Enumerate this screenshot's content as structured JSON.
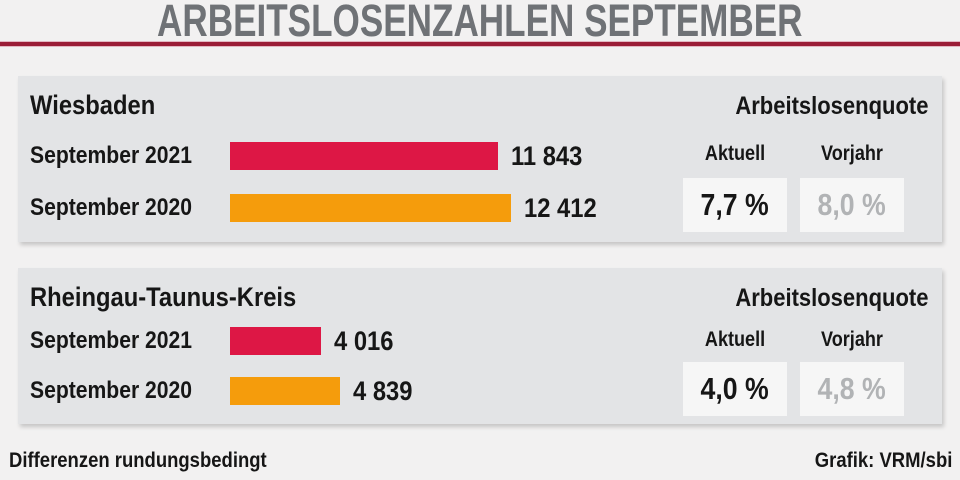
{
  "title": "ARBEITSLOSENZAHLEN SEPTEMBER",
  "labels": {
    "quote_header": "Arbeitslosenquote",
    "aktuell": "Aktuell",
    "vorjahr": "Vorjahr"
  },
  "panels": [
    {
      "region": "Wiesbaden",
      "rows": [
        {
          "label": "September 2021",
          "value": "11 843",
          "value_num": 11843,
          "color": "#dd1745"
        },
        {
          "label": "September 2020",
          "value": "12 412",
          "value_num": 12412,
          "color": "#f59c0c"
        }
      ],
      "quote": {
        "aktuell": "7,7 %",
        "vorjahr": "8,0 %"
      }
    },
    {
      "region": "Rheingau-Taunus-Kreis",
      "rows": [
        {
          "label": "September 2021",
          "value": "4 016",
          "value_num": 4016,
          "color": "#dd1745"
        },
        {
          "label": "September 2020",
          "value": "4 839",
          "value_num": 4839,
          "color": "#f59c0c"
        }
      ],
      "quote": {
        "aktuell": "4,0 %",
        "vorjahr": "4,8 %"
      }
    }
  ],
  "footer": {
    "left": "Differenzen rundungsbedingt",
    "right": "Grafik: VRM/sbi"
  },
  "colors": {
    "bar_2021": "#dd1745",
    "bar_2020": "#f59c0c",
    "rule": "#9b1d37",
    "title_text": "#6f7276",
    "vorjahr_value": "#b1b3b5",
    "panel_bg": "#e3e4e6",
    "page_bg": "#f2f1f1"
  },
  "chart_data": [
    {
      "type": "bar",
      "orientation": "horizontal",
      "title": "Wiesbaden",
      "categories": [
        "September 2021",
        "September 2020"
      ],
      "values": [
        11843,
        12412
      ],
      "data_labels": [
        "11 843",
        "12 412"
      ],
      "bar_colors": [
        "#dd1745",
        "#f59c0c"
      ],
      "xlim": [
        0,
        13000
      ],
      "grid": false,
      "annotations": {
        "quote_header": "Arbeitslosenquote",
        "aktuell_pct": 7.7,
        "vorjahr_pct": 8.0
      }
    },
    {
      "type": "bar",
      "orientation": "horizontal",
      "title": "Rheingau-Taunus-Kreis",
      "categories": [
        "September 2021",
        "September 2020"
      ],
      "values": [
        4016,
        4839
      ],
      "data_labels": [
        "4 016",
        "4 839"
      ],
      "bar_colors": [
        "#dd1745",
        "#f59c0c"
      ],
      "xlim": [
        0,
        13000
      ],
      "grid": false,
      "annotations": {
        "quote_header": "Arbeitslosenquote",
        "aktuell_pct": 4.0,
        "vorjahr_pct": 4.8
      }
    }
  ]
}
